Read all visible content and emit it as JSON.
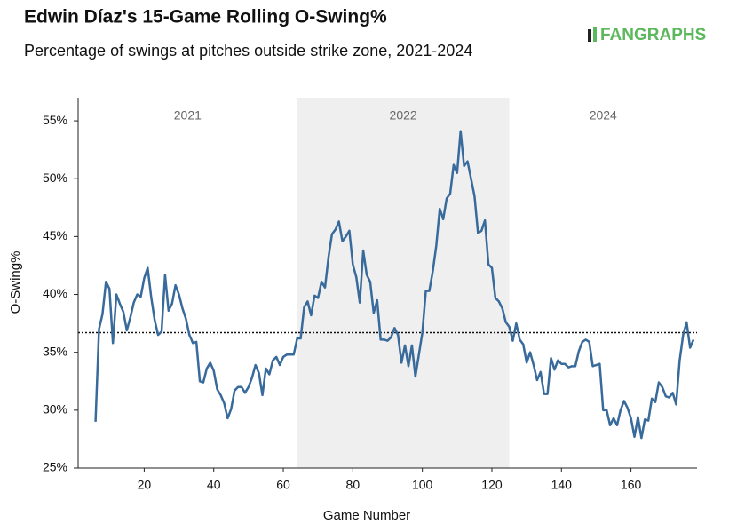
{
  "chart_data": {
    "type": "line",
    "title": "Edwin Díaz's 15-Game Rolling O-Swing%",
    "subtitle": "Percentage of swings at pitches outside strike zone, 2021-2024",
    "logo": "FANGRAPHS",
    "x_label": "Game Number",
    "y_label": "O-Swing%",
    "x": [
      6,
      7,
      8,
      9,
      10,
      11,
      12,
      13,
      14,
      15,
      16,
      17,
      18,
      19,
      20,
      21,
      22,
      23,
      24,
      25,
      26,
      27,
      28,
      29,
      30,
      31,
      32,
      33,
      34,
      35,
      36,
      37,
      38,
      39,
      40,
      41,
      42,
      43,
      44,
      45,
      46,
      47,
      48,
      49,
      50,
      51,
      52,
      53,
      54,
      55,
      56,
      57,
      58,
      59,
      60,
      61,
      62,
      63,
      64,
      65,
      66,
      67,
      68,
      69,
      70,
      71,
      72,
      73,
      74,
      75,
      76,
      77,
      78,
      79,
      80,
      81,
      82,
      83,
      84,
      85,
      86,
      87,
      88,
      89,
      90,
      91,
      92,
      93,
      94,
      95,
      96,
      97,
      98,
      99,
      100,
      101,
      102,
      103,
      104,
      105,
      106,
      107,
      108,
      109,
      110,
      111,
      112,
      113,
      114,
      115,
      116,
      117,
      118,
      119,
      120,
      121,
      122,
      123,
      124,
      125,
      126,
      127,
      128,
      129,
      130,
      131,
      132,
      133,
      134,
      135,
      136,
      137,
      138,
      139,
      140,
      141,
      142,
      143,
      144,
      145,
      146,
      147,
      148,
      149,
      150,
      151,
      152,
      153,
      154,
      155,
      156,
      157,
      158,
      159,
      160,
      161,
      162,
      163,
      164,
      165,
      166,
      167,
      168,
      169,
      170,
      171,
      172,
      173,
      174,
      175,
      176,
      177,
      178
    ],
    "series": [
      {
        "name": "O-Swing%",
        "color": "#386a9b",
        "values": [
          29.0,
          37.0,
          38.3,
          41.1,
          40.5,
          35.8,
          40.0,
          39.2,
          38.5,
          36.9,
          38.0,
          39.3,
          40.0,
          39.8,
          41.4,
          42.3,
          39.8,
          37.8,
          36.5,
          36.8,
          41.7,
          38.6,
          39.2,
          40.8,
          40.0,
          38.8,
          37.9,
          36.5,
          35.8,
          35.9,
          32.5,
          32.4,
          33.6,
          34.1,
          33.4,
          31.8,
          31.3,
          30.6,
          29.3,
          30.1,
          31.7,
          32.0,
          32.0,
          31.5,
          32.0,
          32.8,
          33.9,
          33.2,
          31.3,
          33.6,
          33.1,
          34.3,
          34.6,
          33.9,
          34.6,
          34.8,
          34.8,
          34.8,
          36.2,
          36.2,
          38.9,
          39.4,
          38.2,
          39.9,
          39.7,
          41.1,
          40.6,
          43.2,
          45.2,
          45.6,
          46.3,
          44.6,
          45.0,
          45.5,
          42.6,
          41.5,
          39.3,
          43.8,
          41.7,
          41.1,
          38.4,
          39.5,
          36.1,
          36.1,
          36.0,
          36.3,
          37.1,
          36.5,
          34.1,
          35.6,
          33.8,
          35.6,
          32.9,
          34.8,
          36.7,
          40.3,
          40.3,
          42.0,
          44.2,
          47.4,
          46.5,
          48.3,
          48.7,
          51.2,
          50.5,
          54.1,
          51.1,
          51.5,
          50.0,
          48.5,
          45.3,
          45.5,
          46.4,
          42.6,
          42.3,
          39.7,
          39.4,
          38.8,
          37.6,
          37.2,
          36.0,
          37.5,
          36.1,
          35.7,
          34.1,
          35.0,
          33.9,
          32.6,
          33.3,
          31.4,
          31.4,
          34.5,
          33.5,
          34.3,
          34.0,
          34.0,
          33.7,
          33.8,
          33.8,
          35.1,
          35.9,
          36.1,
          35.9,
          33.8,
          33.9,
          34.0,
          30.0,
          30.0,
          28.7,
          29.3,
          28.7,
          30.0,
          30.8,
          30.2,
          29.3,
          27.7,
          29.4,
          27.6,
          29.2,
          29.1,
          31.0,
          30.7,
          32.4,
          32.0,
          31.2,
          31.1,
          31.5,
          30.5,
          34.3,
          36.5,
          37.6,
          35.4,
          36.1
        ]
      }
    ],
    "xlim": [
      1,
      179
    ],
    "xticks": [
      20,
      40,
      60,
      80,
      100,
      120,
      140,
      160
    ],
    "ylim": [
      25,
      57
    ],
    "yticks": [
      {
        "value": 25,
        "label": "25%"
      },
      {
        "value": 30,
        "label": "30%"
      },
      {
        "value": 35,
        "label": "35%"
      },
      {
        "value": 40,
        "label": "40%"
      },
      {
        "value": 45,
        "label": "45%"
      },
      {
        "value": 50,
        "label": "50%"
      },
      {
        "value": 55,
        "label": "55%"
      }
    ],
    "reference_line": 36.7,
    "shaded_region": [
      64,
      125
    ],
    "season_labels": [
      "2021",
      "2022",
      "2024"
    ],
    "grid": false
  }
}
